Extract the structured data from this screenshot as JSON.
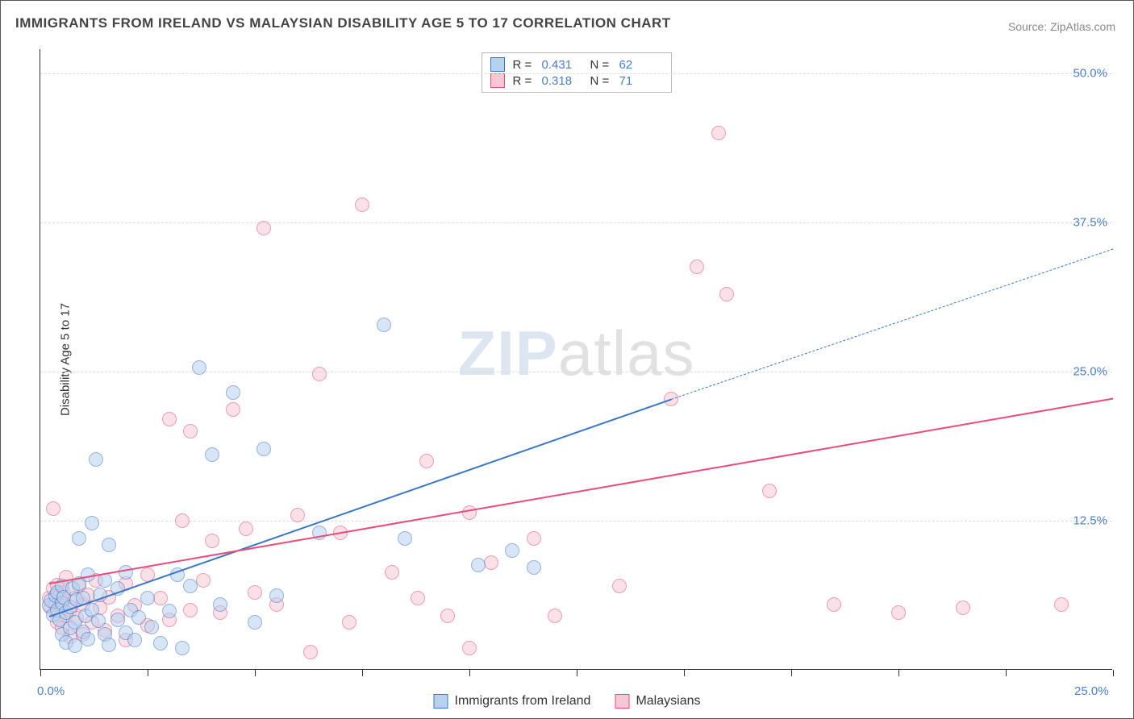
{
  "title": "IMMIGRANTS FROM IRELAND VS MALAYSIAN DISABILITY AGE 5 TO 17 CORRELATION CHART",
  "source_label": "Source:",
  "source_name": "ZipAtlas.com",
  "ylabel": "Disability Age 5 to 17",
  "watermark": {
    "part1": "ZIP",
    "part2": "atlas"
  },
  "chart": {
    "type": "scatter",
    "xlim": [
      0,
      25
    ],
    "ylim": [
      0,
      52
    ],
    "x_ticks": [
      0,
      25
    ],
    "x_tick_labels": [
      "0.0%",
      "25.0%"
    ],
    "y_ticks": [
      12.5,
      25.0,
      37.5,
      50.0
    ],
    "y_tick_labels": [
      "12.5%",
      "25.0%",
      "37.5%",
      "50.0%"
    ],
    "minor_x_step": 2.5,
    "background_color": "#ffffff",
    "grid_color": "#dddddd",
    "point_radius": 9,
    "point_opacity": 0.55,
    "series": [
      {
        "name": "Immigrants from Ireland",
        "color_fill": "#b7d1f0",
        "color_stroke": "#3b78c4",
        "r_value": "0.431",
        "n_value": "62",
        "trend": {
          "x1": 0.2,
          "y1": 4.5,
          "x2": 14.7,
          "y2": 22.7,
          "solid": true,
          "width": 2.5,
          "dash_extend_to_x": 25,
          "dash_extend_to_y": 35.3
        },
        "points": [
          [
            0.2,
            5.4
          ],
          [
            0.25,
            5.8
          ],
          [
            0.3,
            4.6
          ],
          [
            0.35,
            6.2
          ],
          [
            0.4,
            5.0
          ],
          [
            0.4,
            6.5
          ],
          [
            0.45,
            4.2
          ],
          [
            0.5,
            5.6
          ],
          [
            0.5,
            7.0
          ],
          [
            0.5,
            3.0
          ],
          [
            0.55,
            6.1
          ],
          [
            0.6,
            4.8
          ],
          [
            0.6,
            2.3
          ],
          [
            0.7,
            5.3
          ],
          [
            0.7,
            3.5
          ],
          [
            0.75,
            6.8
          ],
          [
            0.8,
            4.0
          ],
          [
            0.8,
            2.0
          ],
          [
            0.85,
            5.9
          ],
          [
            0.9,
            7.2
          ],
          [
            0.9,
            11.0
          ],
          [
            1.0,
            6.0
          ],
          [
            1.0,
            3.2
          ],
          [
            1.05,
            4.5
          ],
          [
            1.1,
            2.6
          ],
          [
            1.1,
            8.0
          ],
          [
            1.2,
            12.3
          ],
          [
            1.2,
            5.0
          ],
          [
            1.3,
            17.6
          ],
          [
            1.35,
            4.1
          ],
          [
            1.4,
            6.3
          ],
          [
            1.5,
            3.0
          ],
          [
            1.5,
            7.5
          ],
          [
            1.6,
            10.5
          ],
          [
            1.6,
            2.1
          ],
          [
            1.8,
            6.8
          ],
          [
            1.8,
            4.2
          ],
          [
            2.0,
            3.1
          ],
          [
            2.0,
            8.2
          ],
          [
            2.1,
            5.0
          ],
          [
            2.2,
            2.5
          ],
          [
            2.3,
            4.4
          ],
          [
            2.5,
            6.0
          ],
          [
            2.6,
            3.6
          ],
          [
            2.8,
            2.2
          ],
          [
            3.0,
            4.9
          ],
          [
            3.2,
            8.0
          ],
          [
            3.3,
            1.8
          ],
          [
            3.5,
            7.0
          ],
          [
            3.7,
            25.3
          ],
          [
            4.0,
            18.0
          ],
          [
            4.2,
            5.5
          ],
          [
            4.5,
            23.2
          ],
          [
            5.0,
            4.0
          ],
          [
            5.2,
            18.5
          ],
          [
            5.5,
            6.2
          ],
          [
            6.5,
            11.5
          ],
          [
            8.0,
            28.9
          ],
          [
            8.5,
            11.0
          ],
          [
            10.2,
            8.8
          ],
          [
            11.0,
            10.0
          ],
          [
            11.5,
            8.6
          ]
        ]
      },
      {
        "name": "Malaysians",
        "color_fill": "#f6c7d4",
        "color_stroke": "#e94b7a",
        "r_value": "0.318",
        "n_value": "71",
        "trend": {
          "x1": 0.2,
          "y1": 7.3,
          "x2": 25.0,
          "y2": 22.8,
          "solid": true,
          "width": 2.5
        },
        "points": [
          [
            0.2,
            6.0
          ],
          [
            0.25,
            5.2
          ],
          [
            0.3,
            6.8
          ],
          [
            0.3,
            13.5
          ],
          [
            0.35,
            5.5
          ],
          [
            0.4,
            7.1
          ],
          [
            0.4,
            4.0
          ],
          [
            0.45,
            6.2
          ],
          [
            0.5,
            5.8
          ],
          [
            0.5,
            3.5
          ],
          [
            0.55,
            6.5
          ],
          [
            0.6,
            4.5
          ],
          [
            0.6,
            7.8
          ],
          [
            0.7,
            5.0
          ],
          [
            0.7,
            2.8
          ],
          [
            0.8,
            6.0
          ],
          [
            0.85,
            4.3
          ],
          [
            0.9,
            7.0
          ],
          [
            1.0,
            5.5
          ],
          [
            1.0,
            3.0
          ],
          [
            1.1,
            6.3
          ],
          [
            1.2,
            4.0
          ],
          [
            1.3,
            7.5
          ],
          [
            1.4,
            5.2
          ],
          [
            1.5,
            3.3
          ],
          [
            1.6,
            6.1
          ],
          [
            1.8,
            4.5
          ],
          [
            2.0,
            7.2
          ],
          [
            2.0,
            2.5
          ],
          [
            2.2,
            5.4
          ],
          [
            2.5,
            8.0
          ],
          [
            2.5,
            3.7
          ],
          [
            2.8,
            6.0
          ],
          [
            3.0,
            21.0
          ],
          [
            3.0,
            4.2
          ],
          [
            3.3,
            12.5
          ],
          [
            3.5,
            20.0
          ],
          [
            3.5,
            5.0
          ],
          [
            3.8,
            7.5
          ],
          [
            4.0,
            10.8
          ],
          [
            4.2,
            4.8
          ],
          [
            4.5,
            21.8
          ],
          [
            4.8,
            11.8
          ],
          [
            5.0,
            6.5
          ],
          [
            5.2,
            37.0
          ],
          [
            5.5,
            5.5
          ],
          [
            6.0,
            13.0
          ],
          [
            6.3,
            1.5
          ],
          [
            6.5,
            24.8
          ],
          [
            7.0,
            11.5
          ],
          [
            7.2,
            4.0
          ],
          [
            7.5,
            39.0
          ],
          [
            8.2,
            8.2
          ],
          [
            8.8,
            6.0
          ],
          [
            9.0,
            17.5
          ],
          [
            9.5,
            4.5
          ],
          [
            10.0,
            13.2
          ],
          [
            10.0,
            1.8
          ],
          [
            10.5,
            9.0
          ],
          [
            11.5,
            11.0
          ],
          [
            12.0,
            4.5
          ],
          [
            13.5,
            7.0
          ],
          [
            14.7,
            22.7
          ],
          [
            15.3,
            33.8
          ],
          [
            15.8,
            45.0
          ],
          [
            16.0,
            31.5
          ],
          [
            17.0,
            15.0
          ],
          [
            18.5,
            5.5
          ],
          [
            20.0,
            4.8
          ],
          [
            21.5,
            5.2
          ],
          [
            23.8,
            5.5
          ]
        ]
      }
    ]
  }
}
